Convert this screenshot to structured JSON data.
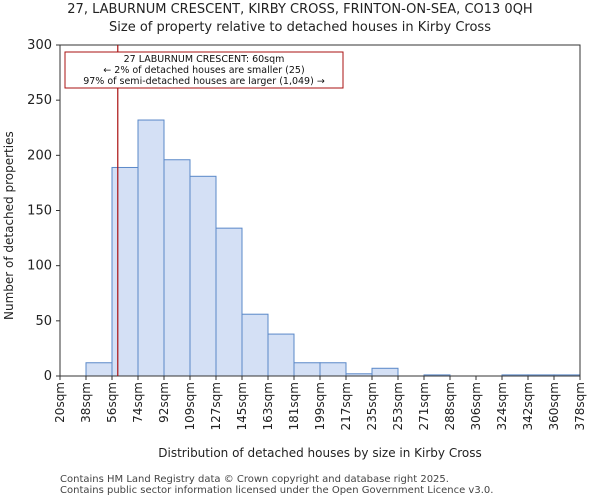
{
  "chart_data": {
    "type": "bar",
    "title": "27, LABURNUM CRESCENT, KIRBY CROSS, FRINTON-ON-SEA, CO13 0QH",
    "subtitle": "Size of property relative to detached houses in Kirby Cross",
    "xlabel": "Distribution of detached houses by size in Kirby Cross",
    "ylabel": "Number of detached properties",
    "categories": [
      "20sqm",
      "38sqm",
      "56sqm",
      "74sqm",
      "92sqm",
      "109sqm",
      "127sqm",
      "145sqm",
      "163sqm",
      "181sqm",
      "199sqm",
      "217sqm",
      "235sqm",
      "253sqm",
      "271sqm",
      "288sqm",
      "306sqm",
      "324sqm",
      "342sqm",
      "360sqm"
    ],
    "tick_labels": [
      "20sqm",
      "38sqm",
      "56sqm",
      "74sqm",
      "92sqm",
      "109sqm",
      "127sqm",
      "145sqm",
      "163sqm",
      "181sqm",
      "199sqm",
      "217sqm",
      "235sqm",
      "253sqm",
      "271sqm",
      "288sqm",
      "306sqm",
      "324sqm",
      "342sqm",
      "360sqm",
      "378sqm"
    ],
    "values": [
      0,
      12,
      189,
      232,
      196,
      181,
      134,
      56,
      38,
      12,
      12,
      2,
      7,
      0,
      1,
      0,
      0,
      1,
      1,
      1
    ],
    "ylim": [
      0,
      300
    ],
    "yticks": [
      0,
      50,
      100,
      150,
      200,
      250,
      300
    ],
    "grid": false,
    "bar_color": "#d4e0f5",
    "bar_edge_color": "#5a88c8",
    "marker": {
      "value_sqm": 60,
      "color": "#aa1111",
      "annotation": [
        "27 LABURNUM CRESCENT: 60sqm",
        "← 2% of detached houses are smaller (25)",
        "97% of semi-detached houses are larger (1,049) →"
      ]
    }
  },
  "footer": {
    "line1": "Contains HM Land Registry data © Crown copyright and database right 2025.",
    "line2": "Contains public sector information licensed under the Open Government Licence v3.0."
  }
}
